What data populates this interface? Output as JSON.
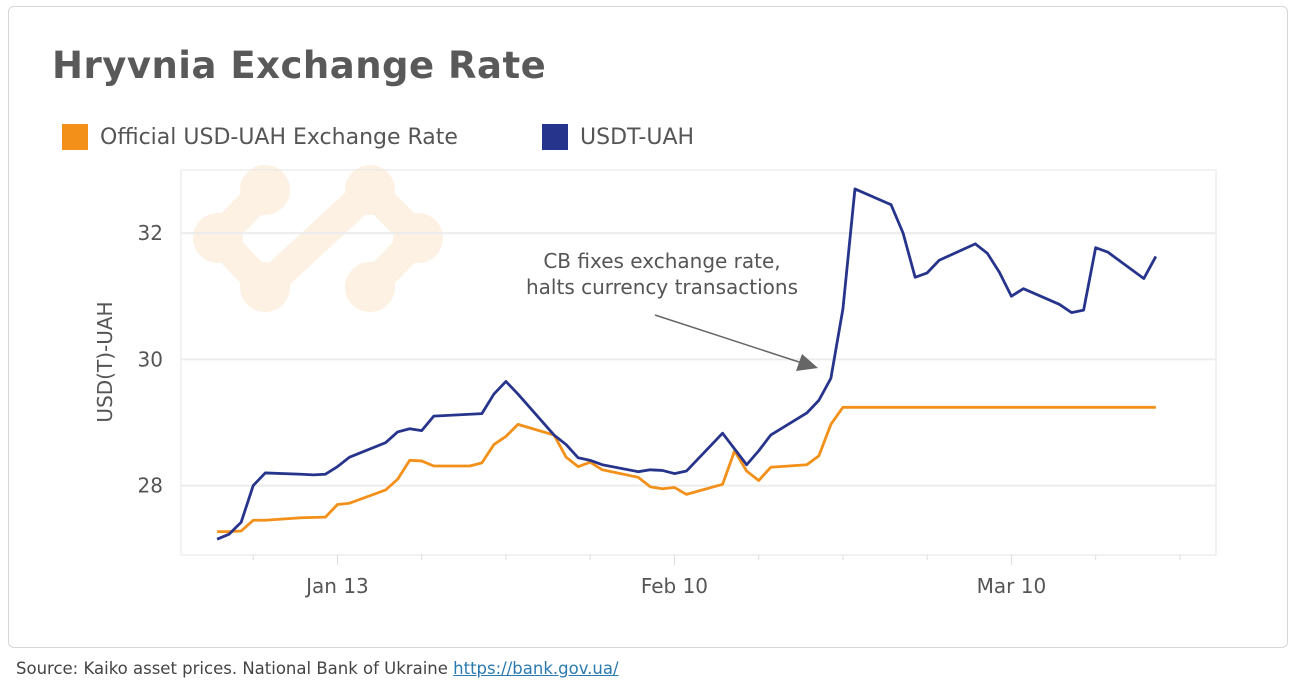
{
  "title": "Hryvnia Exchange Rate",
  "footer": {
    "text": "Source: Kaiko asset prices. National Bank of Ukraine ",
    "link": "https://bank.gov.ua/"
  },
  "chart_data": {
    "type": "line",
    "title": "Hryvnia Exchange Rate",
    "xlabel": "",
    "ylabel": "USD(T)-UAH",
    "ylim": [
      26.9,
      33.0
    ],
    "xlim": [
      "Dec 31",
      "Mar 27"
    ],
    "yticks": [
      28,
      30,
      32
    ],
    "xticks": [
      "Jan 13",
      "Feb 10",
      "Mar 10"
    ],
    "grid": true,
    "legend_position": "top-left",
    "annotation": {
      "text": [
        "CB fixes exchange rate,",
        "halts currency transactions"
      ],
      "points_to": "Feb 23"
    },
    "series": [
      {
        "name": "Official USD-UAH Exchange Rate",
        "color": "#f39019",
        "points": [
          [
            "Jan 3",
            27.27
          ],
          [
            "Jan 4",
            27.27
          ],
          [
            "Jan 5",
            27.28
          ],
          [
            "Jan 6",
            27.45
          ],
          [
            "Jan 7",
            27.45
          ],
          [
            "Jan 10",
            27.49
          ],
          [
            "Jan 12",
            27.5
          ],
          [
            "Jan 13",
            27.7
          ],
          [
            "Jan 14",
            27.72
          ],
          [
            "Jan 17",
            27.93
          ],
          [
            "Jan 18",
            28.1
          ],
          [
            "Jan 19",
            28.4
          ],
          [
            "Jan 20",
            28.39
          ],
          [
            "Jan 21",
            28.31
          ],
          [
            "Jan 24",
            28.31
          ],
          [
            "Jan 25",
            28.36
          ],
          [
            "Jan 26",
            28.65
          ],
          [
            "Jan 27",
            28.78
          ],
          [
            "Jan 28",
            28.97
          ],
          [
            "Jan 31",
            28.8
          ],
          [
            "Feb 1",
            28.45
          ],
          [
            "Feb 2",
            28.3
          ],
          [
            "Feb 3",
            28.37
          ],
          [
            "Feb 4",
            28.25
          ],
          [
            "Feb 7",
            28.13
          ],
          [
            "Feb 8",
            27.98
          ],
          [
            "Feb 9",
            27.95
          ],
          [
            "Feb 10",
            27.97
          ],
          [
            "Feb 11",
            27.86
          ],
          [
            "Feb 14",
            28.02
          ],
          [
            "Feb 15",
            28.55
          ],
          [
            "Feb 16",
            28.23
          ],
          [
            "Feb 17",
            28.08
          ],
          [
            "Feb 18",
            28.29
          ],
          [
            "Feb 21",
            28.33
          ],
          [
            "Feb 22",
            28.47
          ],
          [
            "Feb 23",
            28.97
          ],
          [
            "Feb 24",
            29.24
          ],
          [
            "Mar 1",
            29.24
          ],
          [
            "Mar 10",
            29.24
          ],
          [
            "Mar 22",
            29.24
          ]
        ]
      },
      {
        "name": "USDT-UAH",
        "color": "#27348b",
        "points": [
          [
            "Jan 3",
            27.15
          ],
          [
            "Jan 4",
            27.23
          ],
          [
            "Jan 5",
            27.42
          ],
          [
            "Jan 6",
            28.0
          ],
          [
            "Jan 7",
            28.2
          ],
          [
            "Jan 10",
            28.18
          ],
          [
            "Jan 11",
            28.17
          ],
          [
            "Jan 12",
            28.18
          ],
          [
            "Jan 13",
            28.3
          ],
          [
            "Jan 14",
            28.45
          ],
          [
            "Jan 17",
            28.68
          ],
          [
            "Jan 18",
            28.85
          ],
          [
            "Jan 19",
            28.9
          ],
          [
            "Jan 20",
            28.87
          ],
          [
            "Jan 21",
            29.1
          ],
          [
            "Jan 25",
            29.14
          ],
          [
            "Jan 26",
            29.45
          ],
          [
            "Jan 27",
            29.65
          ],
          [
            "Jan 28",
            29.45
          ],
          [
            "Jan 31",
            28.8
          ],
          [
            "Feb 1",
            28.65
          ],
          [
            "Feb 2",
            28.44
          ],
          [
            "Feb 3",
            28.4
          ],
          [
            "Feb 4",
            28.33
          ],
          [
            "Feb 7",
            28.22
          ],
          [
            "Feb 8",
            28.25
          ],
          [
            "Feb 9",
            28.24
          ],
          [
            "Feb 10",
            28.19
          ],
          [
            "Feb 11",
            28.23
          ],
          [
            "Feb 14",
            28.83
          ],
          [
            "Feb 16",
            28.33
          ],
          [
            "Feb 17",
            28.55
          ],
          [
            "Feb 18",
            28.8
          ],
          [
            "Feb 21",
            29.15
          ],
          [
            "Feb 22",
            29.35
          ],
          [
            "Feb 23",
            29.7
          ],
          [
            "Feb 24",
            30.8
          ],
          [
            "Feb 25",
            32.7
          ],
          [
            "Feb 28",
            32.45
          ],
          [
            "Mar 1",
            32.0
          ],
          [
            "Mar 2",
            31.3
          ],
          [
            "Mar 3",
            31.37
          ],
          [
            "Mar 4",
            31.57
          ],
          [
            "Mar 7",
            31.83
          ],
          [
            "Mar 8",
            31.68
          ],
          [
            "Mar 9",
            31.38
          ],
          [
            "Mar 10",
            31.0
          ],
          [
            "Mar 11",
            31.12
          ],
          [
            "Mar 14",
            30.87
          ],
          [
            "Mar 15",
            30.74
          ],
          [
            "Mar 16",
            30.78
          ],
          [
            "Mar 17",
            31.77
          ],
          [
            "Mar 18",
            31.7
          ],
          [
            "Mar 21",
            31.28
          ],
          [
            "Mar 22",
            31.63
          ]
        ]
      }
    ]
  }
}
